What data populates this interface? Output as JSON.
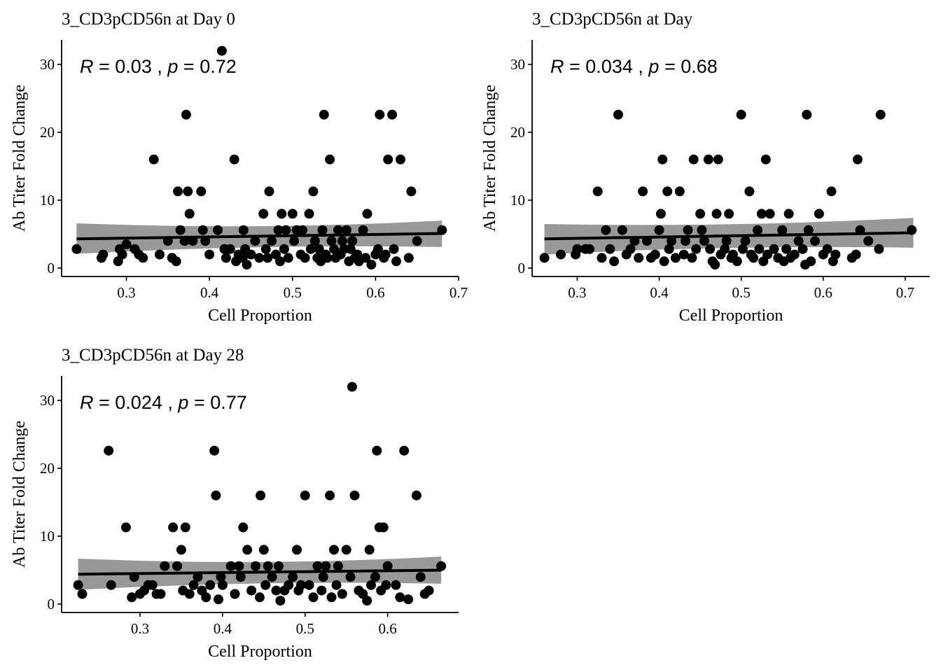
{
  "chart_data": [
    {
      "type": "scatter",
      "title": "3_CD3pCD56n at Day 0",
      "xlabel": "Cell Proportion",
      "ylabel": "Ab Titer Fold Change",
      "xlim": [
        0.222,
        0.7
      ],
      "ylim": [
        -1.2,
        33.4
      ],
      "xticks": [
        0.3,
        0.4,
        0.5,
        0.6,
        0.7
      ],
      "xtick_labels": [
        "0.3",
        "0.4",
        "0.5",
        "0.6",
        "0.7"
      ],
      "yticks": [
        0,
        10,
        20,
        30
      ],
      "ytick_labels": [
        "0",
        "10",
        "20",
        "30"
      ],
      "stat": {
        "r_symbol": "R",
        "r_value": "0.03",
        "sep": ",",
        "p_symbol": "p",
        "p_value": "0.72"
      },
      "fit": {
        "x": [
          0.24,
          0.68
        ],
        "y": [
          4.3,
          5.1
        ],
        "band_lower": [
          2.1,
          3.1
        ],
        "band_upper": [
          6.6,
          7.0
        ]
      },
      "points": {
        "x": [
          0.24,
          0.27,
          0.272,
          0.29,
          0.292,
          0.295,
          0.3,
          0.31,
          0.315,
          0.32,
          0.333,
          0.34,
          0.35,
          0.355,
          0.36,
          0.362,
          0.365,
          0.37,
          0.372,
          0.374,
          0.376,
          0.38,
          0.39,
          0.392,
          0.395,
          0.4,
          0.41,
          0.415,
          0.418,
          0.42,
          0.425,
          0.43,
          0.432,
          0.435,
          0.44,
          0.441,
          0.443,
          0.445,
          0.45,
          0.455,
          0.46,
          0.465,
          0.468,
          0.47,
          0.472,
          0.475,
          0.48,
          0.483,
          0.485,
          0.487,
          0.49,
          0.492,
          0.495,
          0.5,
          0.502,
          0.505,
          0.51,
          0.512,
          0.515,
          0.52,
          0.522,
          0.525,
          0.527,
          0.53,
          0.532,
          0.534,
          0.536,
          0.538,
          0.54,
          0.542,
          0.545,
          0.547,
          0.55,
          0.552,
          0.555,
          0.558,
          0.56,
          0.562,
          0.565,
          0.568,
          0.57,
          0.572,
          0.575,
          0.578,
          0.58,
          0.585,
          0.588,
          0.59,
          0.595,
          0.6,
          0.603,
          0.605,
          0.61,
          0.612,
          0.615,
          0.62,
          0.622,
          0.625,
          0.63,
          0.64,
          0.643,
          0.65,
          0.68
        ],
        "y": [
          2.8,
          1.5,
          2,
          1,
          2.8,
          2,
          3.5,
          2.8,
          2,
          1.5,
          16,
          2,
          4,
          1.5,
          1,
          11.3,
          5.6,
          4,
          22.6,
          11.3,
          8,
          4,
          11.3,
          5.6,
          4,
          2,
          5.6,
          32,
          2.8,
          1.5,
          2.8,
          16,
          1,
          2,
          1.5,
          5.6,
          2.8,
          0.5,
          2,
          4,
          1.5,
          8,
          2.8,
          1.5,
          11.3,
          4,
          2,
          5.6,
          1,
          8,
          2.8,
          5.6,
          1.5,
          8,
          4,
          5.6,
          2,
          5.6,
          1.5,
          8,
          2.8,
          11.3,
          4,
          1.5,
          2.8,
          1,
          5.6,
          22.6,
          2,
          1.5,
          16,
          4,
          2.8,
          1.5,
          5.6,
          2,
          4,
          2.8,
          5.6,
          1,
          2.8,
          4,
          1.5,
          2,
          1,
          5.6,
          1.5,
          8,
          0.5,
          2,
          2.8,
          22.6,
          1.5,
          2,
          16,
          22.6,
          2.8,
          1,
          16,
          1.5,
          11.3,
          4,
          5.6
        ]
      }
    },
    {
      "type": "scatter",
      "title": "3_CD3pCD56n at Day",
      "xlabel": "Cell Proportion",
      "ylabel": "Ab Titer Fold Change",
      "xlim": [
        0.245,
        0.73
      ],
      "ylim": [
        -1.2,
        33.4
      ],
      "xticks": [
        0.3,
        0.4,
        0.5,
        0.6,
        0.7
      ],
      "xtick_labels": [
        "0.3",
        "0.4",
        "0.5",
        "0.6",
        "0.7"
      ],
      "yticks": [
        0,
        10,
        20,
        30
      ],
      "ytick_labels": [
        "0",
        "10",
        "20",
        "30"
      ],
      "stat": {
        "r_symbol": "R",
        "r_value": "0.034",
        "sep": ",",
        "p_symbol": "p",
        "p_value": "0.68"
      },
      "fit": {
        "x": [
          0.26,
          0.71
        ],
        "y": [
          4.3,
          5.2
        ],
        "band_lower": [
          2.0,
          3.0
        ],
        "band_upper": [
          6.5,
          7.4
        ]
      },
      "points": {
        "x": [
          0.26,
          0.28,
          0.298,
          0.3,
          0.31,
          0.315,
          0.325,
          0.33,
          0.335,
          0.34,
          0.345,
          0.35,
          0.355,
          0.36,
          0.365,
          0.37,
          0.375,
          0.38,
          0.385,
          0.39,
          0.395,
          0.4,
          0.402,
          0.404,
          0.406,
          0.41,
          0.412,
          0.415,
          0.42,
          0.425,
          0.43,
          0.432,
          0.435,
          0.44,
          0.442,
          0.445,
          0.45,
          0.452,
          0.455,
          0.46,
          0.462,
          0.465,
          0.468,
          0.47,
          0.472,
          0.475,
          0.48,
          0.482,
          0.485,
          0.488,
          0.49,
          0.495,
          0.5,
          0.502,
          0.505,
          0.51,
          0.512,
          0.515,
          0.52,
          0.522,
          0.525,
          0.527,
          0.53,
          0.532,
          0.535,
          0.54,
          0.545,
          0.55,
          0.552,
          0.555,
          0.558,
          0.56,
          0.565,
          0.57,
          0.575,
          0.578,
          0.58,
          0.582,
          0.585,
          0.59,
          0.595,
          0.6,
          0.605,
          0.61,
          0.612,
          0.615,
          0.635,
          0.64,
          0.642,
          0.645,
          0.655,
          0.668,
          0.67,
          0.708
        ],
        "y": [
          1.5,
          2,
          2,
          2.8,
          2.8,
          2.8,
          11.3,
          1.5,
          5.6,
          2.8,
          1,
          22.6,
          5.6,
          2,
          2.8,
          4,
          1.5,
          11.3,
          4,
          1.5,
          2,
          5.6,
          8,
          16,
          1,
          11.3,
          2.8,
          4,
          1.5,
          11.3,
          2,
          4,
          5.6,
          1.5,
          16,
          2.8,
          8,
          5.6,
          4,
          16,
          2.8,
          1,
          0.5,
          8,
          16,
          2,
          2.8,
          4,
          8,
          1.5,
          2,
          1,
          22.6,
          2.8,
          4,
          11.3,
          2,
          1.5,
          5.6,
          2.8,
          8,
          1,
          16,
          2,
          8,
          2.8,
          1.5,
          5.6,
          1,
          2.8,
          8,
          1.5,
          2,
          4,
          2.8,
          0.5,
          22.6,
          5.6,
          1,
          4,
          8,
          2,
          2.8,
          11.3,
          1,
          2,
          1.5,
          2,
          16,
          5.6,
          4,
          2.8,
          22.6,
          5.6
        ]
      }
    },
    {
      "type": "scatter",
      "title": "3_CD3pCD56n at Day 28",
      "xlabel": "Cell Proportion",
      "ylabel": "Ab Titer Fold Change",
      "xlim": [
        0.205,
        0.686
      ],
      "ylim": [
        -1.2,
        33.4
      ],
      "xticks": [
        0.3,
        0.4,
        0.5,
        0.6
      ],
      "xtick_labels": [
        "0.3",
        "0.4",
        "0.5",
        "0.6"
      ],
      "yticks": [
        0,
        10,
        20,
        30
      ],
      "ytick_labels": [
        "0",
        "10",
        "20",
        "30"
      ],
      "stat": {
        "r_symbol": "R",
        "r_value": "0.024",
        "sep": ",",
        "p_symbol": "p",
        "p_value": "0.77"
      },
      "fit": {
        "x": [
          0.225,
          0.665
        ],
        "y": [
          4.4,
          5.0
        ],
        "band_lower": [
          2.1,
          3.0
        ],
        "band_upper": [
          6.7,
          7.0
        ]
      },
      "points": {
        "x": [
          0.225,
          0.23,
          0.262,
          0.265,
          0.283,
          0.29,
          0.293,
          0.3,
          0.305,
          0.31,
          0.315,
          0.32,
          0.325,
          0.33,
          0.34,
          0.345,
          0.35,
          0.352,
          0.355,
          0.36,
          0.365,
          0.37,
          0.375,
          0.38,
          0.385,
          0.39,
          0.392,
          0.395,
          0.398,
          0.4,
          0.41,
          0.415,
          0.42,
          0.422,
          0.425,
          0.43,
          0.435,
          0.44,
          0.445,
          0.446,
          0.45,
          0.452,
          0.455,
          0.46,
          0.465,
          0.468,
          0.47,
          0.475,
          0.48,
          0.485,
          0.49,
          0.492,
          0.495,
          0.5,
          0.505,
          0.51,
          0.515,
          0.52,
          0.522,
          0.525,
          0.53,
          0.532,
          0.535,
          0.538,
          0.54,
          0.545,
          0.55,
          0.555,
          0.557,
          0.56,
          0.565,
          0.57,
          0.575,
          0.578,
          0.58,
          0.585,
          0.587,
          0.59,
          0.592,
          0.595,
          0.598,
          0.6,
          0.61,
          0.615,
          0.62,
          0.625,
          0.635,
          0.64,
          0.645,
          0.65,
          0.665
        ],
        "y": [
          2.8,
          1.5,
          22.6,
          2.8,
          11.3,
          1,
          4,
          1.5,
          2,
          2.8,
          2.8,
          1.5,
          1.5,
          5.6,
          11.3,
          5.6,
          8,
          2,
          11.3,
          1.5,
          2.8,
          4,
          2,
          1,
          2.8,
          22.6,
          16,
          0.7,
          4,
          2.8,
          5.6,
          1.5,
          5.6,
          4,
          11.3,
          8,
          2,
          5.6,
          1,
          16,
          8,
          2.8,
          5.6,
          4,
          2,
          5.6,
          0.5,
          2,
          2.8,
          4,
          8,
          2,
          2.8,
          16,
          2.8,
          1,
          5.6,
          2,
          4,
          5.6,
          16,
          1,
          8,
          2.8,
          5.6,
          1.5,
          8,
          4,
          32,
          16,
          2,
          1.5,
          0.5,
          8,
          2.8,
          4,
          22.6,
          11.3,
          2,
          11.3,
          2.8,
          5.6,
          2.8,
          1,
          22.6,
          0.7,
          16,
          4,
          1.5,
          2,
          5.6
        ]
      }
    }
  ]
}
